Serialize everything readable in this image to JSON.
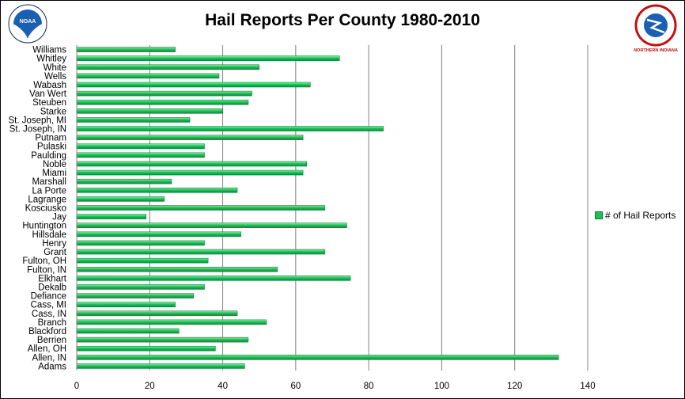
{
  "colors": {
    "bar": "#22c05a",
    "bar_dark": "#0b8a3a",
    "grid": "#808080"
  },
  "logos": {
    "left": "noaa-logo",
    "left_text": "NOAA",
    "right": "nws-logo",
    "right_text": "NATIONAL WEATHER SERVICE",
    "right_subtext": "NORTHERN INDIANA"
  },
  "chart_data": {
    "type": "bar",
    "orientation": "horizontal",
    "title": "Hail Reports Per County 1980-2010",
    "categories": [
      "Williams",
      "Whitley",
      "White",
      "Wells",
      "Wabash",
      "Van Wert",
      "Steuben",
      "Starke",
      "St. Joseph, MI",
      "St. Joseph, IN",
      "Putnam",
      "Pulaski",
      "Paulding",
      "Noble",
      "Miami",
      "Marshall",
      "La Porte",
      "Lagrange",
      "Kosciusko",
      "Jay",
      "Huntington",
      "Hillsdale",
      "Henry",
      "Grant",
      "Fulton, OH",
      "Fulton, IN",
      "Elkhart",
      "Dekalb",
      "Defiance",
      "Cass, MI",
      "Cass, IN",
      "Branch",
      "Blackford",
      "Berrien",
      "Allen, OH",
      "Allen, IN",
      "Adams"
    ],
    "series": [
      {
        "name": "# of Hail Reports",
        "values": [
          27,
          72,
          50,
          39,
          64,
          48,
          47,
          40,
          31,
          84,
          62,
          35,
          35,
          63,
          62,
          26,
          44,
          24,
          68,
          19,
          74,
          45,
          35,
          68,
          36,
          55,
          75,
          35,
          32,
          27,
          44,
          52,
          28,
          47,
          38,
          132,
          46
        ]
      }
    ],
    "xlim": [
      0,
      140
    ],
    "xticks": [
      0,
      20,
      40,
      60,
      80,
      100,
      120,
      140
    ],
    "grid": true,
    "legend_position": "right"
  }
}
